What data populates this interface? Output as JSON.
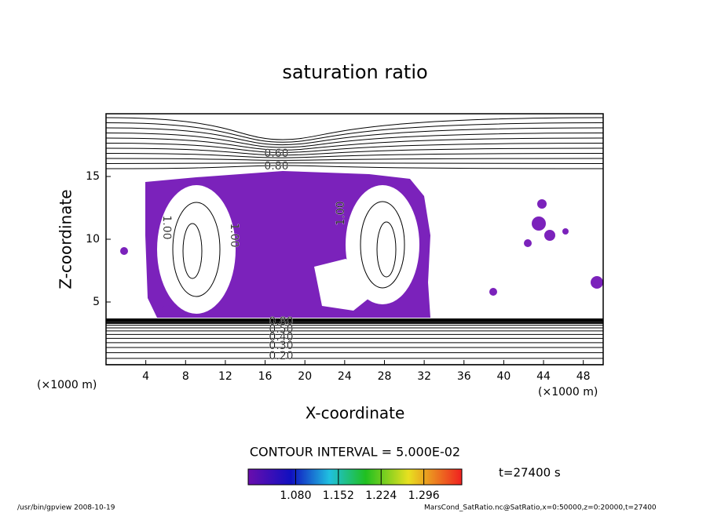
{
  "chart_data": {
    "type": "contour",
    "title": "saturation ratio",
    "x_label": "X-coordinate",
    "y_label": "Z-coordinate",
    "y_unit": "(×1000 m)",
    "x_unit": "(×1000 m)",
    "xlim": [
      0,
      50
    ],
    "xticks": [
      4,
      8,
      12,
      16,
      20,
      24,
      28,
      32,
      36,
      40,
      44,
      48
    ],
    "ylim": [
      0,
      20
    ],
    "yticks": [
      5,
      10,
      15
    ],
    "contour_labels": [
      "0.60",
      "0.80",
      "1.00",
      "1.00",
      "1.00",
      "0.80",
      "0.50",
      "0.40",
      "0.30",
      "0.20"
    ],
    "contour_interval": "CONTOUR INTERVAL = 5.000E-02",
    "fill_color": "#7b22bb",
    "colorbar": {
      "clim": [
        1.0,
        1.36
      ],
      "ticks": [
        {
          "value": 1.08,
          "label": "1.080"
        },
        {
          "value": 1.152,
          "label": "1.152"
        },
        {
          "value": 1.224,
          "label": "1.224"
        },
        {
          "value": 1.296,
          "label": "1.296"
        }
      ]
    },
    "time_label": "t=27400 s",
    "footer_left": "/usr/bin/gpview   2008-10-19",
    "footer_right": "MarsCond_SatRatio.nc@SatRatio,x=0:50000,z=0:20000,t=27400"
  }
}
